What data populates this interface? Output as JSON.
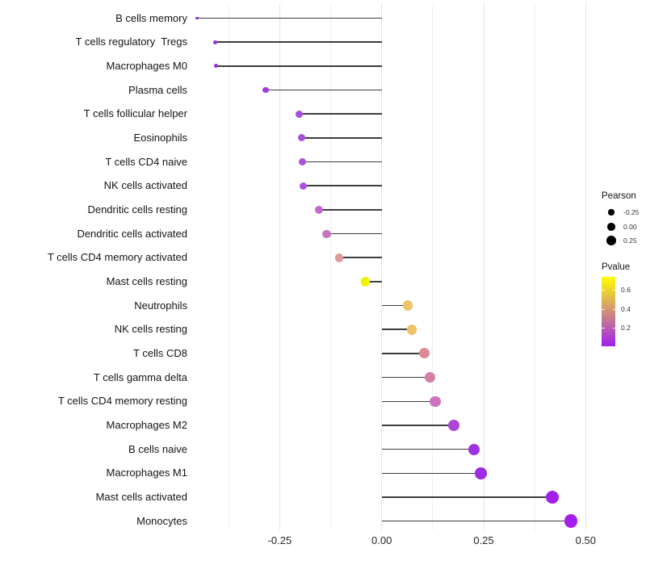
{
  "chart_data": {
    "type": "lollipop",
    "title": "",
    "xlabel": "",
    "ylabel": "",
    "orientation": "horizontal",
    "xlim": [
      -0.5,
      0.51
    ],
    "grid": "vertical-only",
    "x_ticks": [
      {
        "value": -0.25,
        "label": "-0.25"
      },
      {
        "value": 0.0,
        "label": "0.00"
      },
      {
        "value": 0.25,
        "label": "0.25"
      },
      {
        "value": 0.5,
        "label": "0.50"
      }
    ],
    "x_minor_gridlines": [
      -0.375,
      -0.125,
      0.125,
      0.375
    ],
    "rows": [
      {
        "label": "B cells memory",
        "pearson": -0.453,
        "pvalue": 0.02,
        "color": "#8E2BDB"
      },
      {
        "label": "T cells regulatory  Tregs",
        "pearson": -0.408,
        "pvalue": 0.04,
        "color": "#9A2CDF"
      },
      {
        "label": "Macrophages M0",
        "pearson": -0.406,
        "pvalue": 0.04,
        "color": "#9A2BDD"
      },
      {
        "label": "Plasma cells",
        "pearson": -0.284,
        "pvalue": 0.09,
        "color": "#A23BDB"
      },
      {
        "label": "T cells follicular helper",
        "pearson": -0.202,
        "pvalue": 0.15,
        "color": "#A64EE0"
      },
      {
        "label": "Eosinophils",
        "pearson": -0.197,
        "pvalue": 0.15,
        "color": "#A850E0"
      },
      {
        "label": "T cells CD4 naive",
        "pearson": -0.195,
        "pvalue": 0.15,
        "color": "#A850E0"
      },
      {
        "label": "NK cells activated",
        "pearson": -0.192,
        "pvalue": 0.16,
        "color": "#A952DF"
      },
      {
        "label": "Dendritic cells resting",
        "pearson": -0.153,
        "pvalue": 0.25,
        "color": "#C369CB"
      },
      {
        "label": "Dendritic cells activated",
        "pearson": -0.135,
        "pvalue": 0.28,
        "color": "#C873C1"
      },
      {
        "label": "T cells CD4 memory activated",
        "pearson": -0.104,
        "pvalue": 0.42,
        "color": "#DD9B9C"
      },
      {
        "label": "Mast cells resting",
        "pearson": -0.04,
        "pvalue": 0.72,
        "color": "#F2F203"
      },
      {
        "label": "Neutrophils",
        "pearson": 0.064,
        "pvalue": 0.55,
        "color": "#EEC464"
      },
      {
        "label": "NK cells resting",
        "pearson": 0.074,
        "pvalue": 0.54,
        "color": "#EFC267"
      },
      {
        "label": "T cells CD8",
        "pearson": 0.105,
        "pvalue": 0.36,
        "color": "#DC8A96"
      },
      {
        "label": "T cells gamma delta",
        "pearson": 0.119,
        "pvalue": 0.32,
        "color": "#D580A8"
      },
      {
        "label": "T cells CD4 memory resting",
        "pearson": 0.131,
        "pvalue": 0.28,
        "color": "#CE73BD"
      },
      {
        "label": "Macrophages M2",
        "pearson": 0.176,
        "pvalue": 0.14,
        "color": "#AD47D8"
      },
      {
        "label": "B cells naive",
        "pearson": 0.226,
        "pvalue": 0.08,
        "color": "#9C33E1"
      },
      {
        "label": "Macrophages M1",
        "pearson": 0.243,
        "pvalue": 0.06,
        "color": "#9F2CE5"
      },
      {
        "label": "Mast cells activated",
        "pearson": 0.419,
        "pvalue": 0.04,
        "color": "#A21EE9"
      },
      {
        "label": "Monocytes",
        "pearson": 0.464,
        "pvalue": 0.03,
        "color": "#A51FEC"
      }
    ],
    "legend": {
      "size": {
        "title": "Pearson",
        "entries": [
          {
            "label": "-0.25"
          },
          {
            "label": "0.00"
          },
          {
            "label": "0.25"
          }
        ]
      },
      "color": {
        "title": "Pvalue",
        "top_color": "#FFFF00",
        "bottom_color": "#A020F0",
        "range": [
          0,
          0.74
        ],
        "tick_values": [
          0.6,
          0.4,
          0.2
        ],
        "tick_labels": [
          "0.6",
          "0.4",
          "0.2"
        ]
      }
    },
    "stem_color": "#3d3d3d",
    "significant_color": "#A020F0"
  }
}
